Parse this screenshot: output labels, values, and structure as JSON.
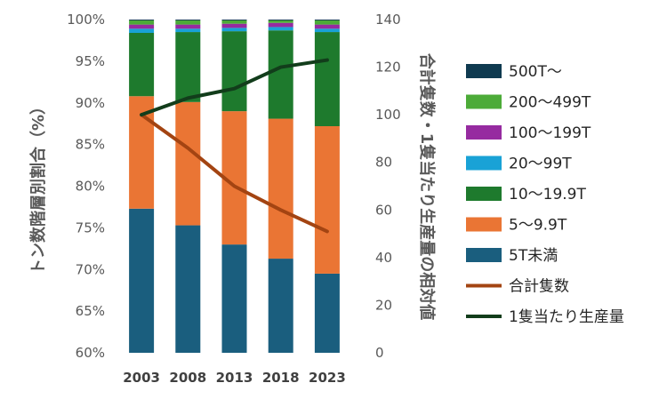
{
  "chart_data": {
    "type": "bar",
    "stacked": true,
    "categories": [
      "2003",
      "2008",
      "2013",
      "2018",
      "2023"
    ],
    "left_axis": {
      "title": "トン数階層別割合（%）",
      "ylim": [
        60,
        100
      ],
      "ticks": [
        "60%",
        "65%",
        "70%",
        "75%",
        "80%",
        "85%",
        "90%",
        "95%",
        "100%"
      ],
      "tick_values": [
        60,
        65,
        70,
        75,
        80,
        85,
        90,
        95,
        100
      ]
    },
    "right_axis": {
      "title": "合計隻数・1隻当たり生産量の相対値",
      "ylim": [
        0,
        140
      ],
      "ticks": [
        "0",
        "20",
        "40",
        "60",
        "80",
        "100",
        "120",
        "140"
      ],
      "tick_values": [
        0,
        20,
        40,
        60,
        80,
        100,
        120,
        140
      ]
    },
    "series": [
      {
        "name": "5T未満",
        "color": "#1a5e7e",
        "values": [
          77.3,
          75.3,
          73.0,
          71.3,
          69.5
        ]
      },
      {
        "name": "5～9.9T",
        "color": "#ea7534",
        "values": [
          13.5,
          14.8,
          16.0,
          16.8,
          17.7
        ]
      },
      {
        "name": "10～19.9T",
        "color": "#1e7a2d",
        "values": [
          7.6,
          8.4,
          9.6,
          10.6,
          11.3
        ]
      },
      {
        "name": "20～99T",
        "color": "#19a2d6",
        "values": [
          0.5,
          0.4,
          0.4,
          0.4,
          0.4
        ]
      },
      {
        "name": "100～199T",
        "color": "#962ba0",
        "values": [
          0.5,
          0.5,
          0.5,
          0.5,
          0.5
        ]
      },
      {
        "name": "200～499T",
        "color": "#4cab38",
        "values": [
          0.5,
          0.5,
          0.4,
          0.3,
          0.5
        ]
      },
      {
        "name": "500T～",
        "color": "#0f3a50",
        "values": [
          0.1,
          0.1,
          0.1,
          0.1,
          0.1
        ]
      }
    ],
    "lines": [
      {
        "name": "合計隻数",
        "color": "#a34412",
        "axis": "right",
        "values": [
          100,
          86,
          70,
          60,
          51
        ]
      },
      {
        "name": "1隻当たり生産量",
        "color": "#123d1b",
        "axis": "right",
        "values": [
          100,
          107,
          111,
          120,
          123
        ]
      }
    ],
    "legend": [
      {
        "name": "500T～",
        "kind": "box",
        "color": "#0f3a50"
      },
      {
        "name": "200～499T",
        "kind": "box",
        "color": "#4cab38"
      },
      {
        "name": "100～199T",
        "kind": "box",
        "color": "#962ba0"
      },
      {
        "name": "20～99T",
        "kind": "box",
        "color": "#19a2d6"
      },
      {
        "name": "10～19.9T",
        "kind": "box",
        "color": "#1e7a2d"
      },
      {
        "name": "5～9.9T",
        "kind": "box",
        "color": "#ea7534"
      },
      {
        "name": "5T未満",
        "kind": "box",
        "color": "#1a5e7e"
      },
      {
        "name": "合計隻数",
        "kind": "line",
        "color": "#a34412"
      },
      {
        "name": "1隻当たり生産量",
        "kind": "line",
        "color": "#123d1b"
      }
    ],
    "legend_position": "right",
    "grid": false
  }
}
